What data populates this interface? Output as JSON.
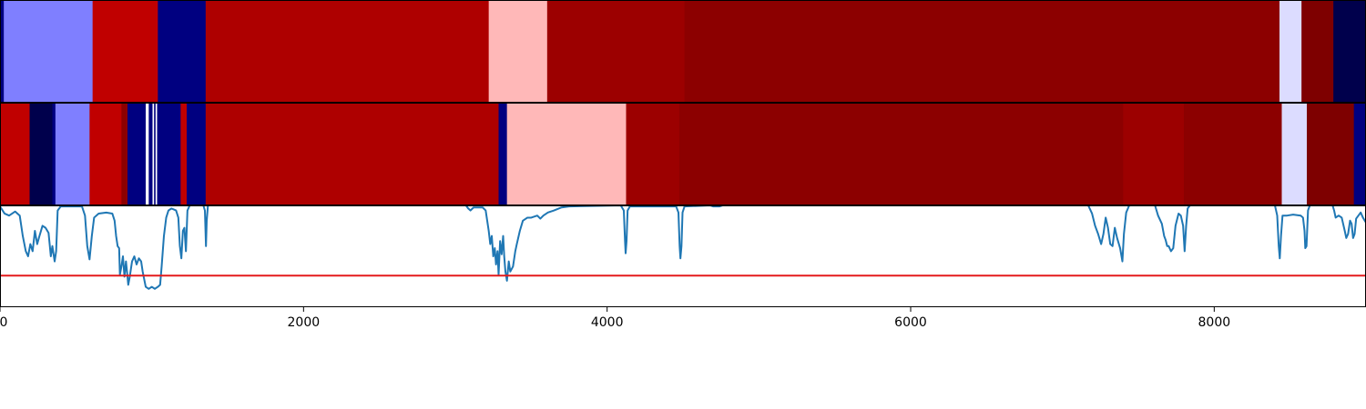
{
  "chart_data": {
    "type": "segmentation-strips-with-line",
    "xlim": [
      0,
      9000
    ],
    "x_ticks": [
      {
        "value": 0,
        "label": "0"
      },
      {
        "value": 2000,
        "label": "2000"
      },
      {
        "value": 4000,
        "label": "4000"
      },
      {
        "value": 6000,
        "label": "6000"
      },
      {
        "value": 8000,
        "label": "8000"
      }
    ],
    "strips": [
      {
        "segments": [
          {
            "start": 0,
            "end": 25,
            "color": "#000080"
          },
          {
            "start": 25,
            "end": 610,
            "color": "#7f7fff"
          },
          {
            "start": 610,
            "end": 1040,
            "color": "#c00000"
          },
          {
            "start": 1040,
            "end": 1355,
            "color": "#000080"
          },
          {
            "start": 1355,
            "end": 3220,
            "color": "#ae0000"
          },
          {
            "start": 3220,
            "end": 3605,
            "color": "#ffb8b8"
          },
          {
            "start": 3605,
            "end": 4510,
            "color": "#9c0000"
          },
          {
            "start": 4510,
            "end": 8430,
            "color": "#8c0000"
          },
          {
            "start": 8430,
            "end": 8575,
            "color": "#dcdcff"
          },
          {
            "start": 8575,
            "end": 8785,
            "color": "#7e0000"
          },
          {
            "start": 8785,
            "end": 9000,
            "color": "#00004c"
          }
        ]
      },
      {
        "segments": [
          {
            "start": 0,
            "end": 195,
            "color": "#c00000"
          },
          {
            "start": 195,
            "end": 345,
            "color": "#00004c"
          },
          {
            "start": 345,
            "end": 365,
            "color": "#000080"
          },
          {
            "start": 365,
            "end": 590,
            "color": "#7f7fff"
          },
          {
            "start": 590,
            "end": 800,
            "color": "#c00000"
          },
          {
            "start": 800,
            "end": 840,
            "color": "#8c0000"
          },
          {
            "start": 840,
            "end": 960,
            "color": "#000080"
          },
          {
            "start": 960,
            "end": 980,
            "color": "#ffffff"
          },
          {
            "start": 980,
            "end": 1005,
            "color": "#000080"
          },
          {
            "start": 1005,
            "end": 1015,
            "color": "#ffffff"
          },
          {
            "start": 1015,
            "end": 1025,
            "color": "#000080"
          },
          {
            "start": 1025,
            "end": 1035,
            "color": "#ffffff"
          },
          {
            "start": 1035,
            "end": 1190,
            "color": "#000080"
          },
          {
            "start": 1190,
            "end": 1230,
            "color": "#c00000"
          },
          {
            "start": 1230,
            "end": 1355,
            "color": "#000080"
          },
          {
            "start": 1355,
            "end": 3285,
            "color": "#ae0000"
          },
          {
            "start": 3285,
            "end": 3340,
            "color": "#000080"
          },
          {
            "start": 3340,
            "end": 4125,
            "color": "#ffb8b8"
          },
          {
            "start": 4125,
            "end": 4475,
            "color": "#9c0000"
          },
          {
            "start": 4475,
            "end": 7400,
            "color": "#8c0000"
          },
          {
            "start": 7400,
            "end": 7800,
            "color": "#9c0000"
          },
          {
            "start": 7800,
            "end": 8445,
            "color": "#8c0000"
          },
          {
            "start": 8445,
            "end": 8610,
            "color": "#dcdcff"
          },
          {
            "start": 8610,
            "end": 8920,
            "color": "#7e0000"
          },
          {
            "start": 8920,
            "end": 9000,
            "color": "#000080"
          }
        ]
      }
    ],
    "line": {
      "color": "#1f77b4",
      "ylim": [
        0,
        1
      ],
      "points": [
        [
          0,
          0.99
        ],
        [
          30,
          0.92
        ],
        [
          60,
          0.9
        ],
        [
          100,
          0.94
        ],
        [
          130,
          0.9
        ],
        [
          150,
          0.7
        ],
        [
          170,
          0.55
        ],
        [
          185,
          0.5
        ],
        [
          200,
          0.62
        ],
        [
          215,
          0.55
        ],
        [
          230,
          0.75
        ],
        [
          245,
          0.62
        ],
        [
          260,
          0.7
        ],
        [
          280,
          0.8
        ],
        [
          300,
          0.78
        ],
        [
          320,
          0.73
        ],
        [
          335,
          0.5
        ],
        [
          345,
          0.6
        ],
        [
          360,
          0.45
        ],
        [
          370,
          0.55
        ],
        [
          380,
          0.95
        ],
        [
          400,
          0.99
        ],
        [
          540,
          0.99
        ],
        [
          560,
          0.9
        ],
        [
          575,
          0.6
        ],
        [
          590,
          0.47
        ],
        [
          605,
          0.7
        ],
        [
          620,
          0.88
        ],
        [
          650,
          0.92
        ],
        [
          700,
          0.93
        ],
        [
          740,
          0.92
        ],
        [
          755,
          0.85
        ],
        [
          765,
          0.7
        ],
        [
          775,
          0.6
        ],
        [
          785,
          0.58
        ],
        [
          790,
          0.32
        ],
        [
          800,
          0.4
        ],
        [
          810,
          0.5
        ],
        [
          820,
          0.3
        ],
        [
          830,
          0.45
        ],
        [
          840,
          0.3
        ],
        [
          845,
          0.22
        ],
        [
          855,
          0.3
        ],
        [
          870,
          0.45
        ],
        [
          885,
          0.5
        ],
        [
          900,
          0.42
        ],
        [
          915,
          0.48
        ],
        [
          930,
          0.45
        ],
        [
          940,
          0.35
        ],
        [
          960,
          0.2
        ],
        [
          980,
          0.18
        ],
        [
          1000,
          0.2
        ],
        [
          1020,
          0.18
        ],
        [
          1040,
          0.2
        ],
        [
          1055,
          0.22
        ],
        [
          1065,
          0.4
        ],
        [
          1080,
          0.7
        ],
        [
          1095,
          0.88
        ],
        [
          1110,
          0.95
        ],
        [
          1130,
          0.97
        ],
        [
          1160,
          0.95
        ],
        [
          1175,
          0.88
        ],
        [
          1185,
          0.6
        ],
        [
          1195,
          0.48
        ],
        [
          1205,
          0.75
        ],
        [
          1215,
          0.78
        ],
        [
          1225,
          0.55
        ],
        [
          1235,
          0.95
        ],
        [
          1250,
          1.0
        ],
        [
          1340,
          1.0
        ],
        [
          1350,
          0.95
        ],
        [
          1357,
          0.6
        ],
        [
          1362,
          0.85
        ],
        [
          1370,
          1.0
        ],
        [
          3070,
          1.0
        ],
        [
          3085,
          0.97
        ],
        [
          3100,
          0.95
        ],
        [
          3120,
          0.98
        ],
        [
          3180,
          0.98
        ],
        [
          3200,
          0.95
        ],
        [
          3210,
          0.85
        ],
        [
          3220,
          0.75
        ],
        [
          3230,
          0.62
        ],
        [
          3240,
          0.7
        ],
        [
          3250,
          0.5
        ],
        [
          3260,
          0.58
        ],
        [
          3268,
          0.42
        ],
        [
          3278,
          0.55
        ],
        [
          3285,
          0.32
        ],
        [
          3295,
          0.65
        ],
        [
          3305,
          0.52
        ],
        [
          3315,
          0.7
        ],
        [
          3322,
          0.5
        ],
        [
          3330,
          0.35
        ],
        [
          3340,
          0.26
        ],
        [
          3352,
          0.45
        ],
        [
          3362,
          0.35
        ],
        [
          3380,
          0.4
        ],
        [
          3395,
          0.55
        ],
        [
          3405,
          0.62
        ],
        [
          3425,
          0.75
        ],
        [
          3445,
          0.85
        ],
        [
          3475,
          0.88
        ],
        [
          3500,
          0.88
        ],
        [
          3540,
          0.9
        ],
        [
          3560,
          0.87
        ],
        [
          3580,
          0.9
        ],
        [
          3610,
          0.93
        ],
        [
          3650,
          0.95
        ],
        [
          3700,
          0.98
        ],
        [
          3750,
          0.99
        ],
        [
          4090,
          1.0
        ],
        [
          4110,
          0.95
        ],
        [
          4118,
          0.65
        ],
        [
          4122,
          0.53
        ],
        [
          4128,
          0.65
        ],
        [
          4135,
          0.95
        ],
        [
          4150,
          0.99
        ],
        [
          4455,
          0.99
        ],
        [
          4470,
          0.93
        ],
        [
          4478,
          0.6
        ],
        [
          4483,
          0.48
        ],
        [
          4490,
          0.6
        ],
        [
          4497,
          0.93
        ],
        [
          4510,
          0.99
        ],
        [
          4680,
          1.0
        ],
        [
          4700,
          0.99
        ],
        [
          4740,
          0.99
        ],
        [
          4760,
          1.0
        ],
        [
          7170,
          1.0
        ],
        [
          7195,
          0.92
        ],
        [
          7215,
          0.8
        ],
        [
          7235,
          0.72
        ],
        [
          7255,
          0.62
        ],
        [
          7270,
          0.72
        ],
        [
          7285,
          0.88
        ],
        [
          7300,
          0.78
        ],
        [
          7315,
          0.62
        ],
        [
          7330,
          0.6
        ],
        [
          7345,
          0.78
        ],
        [
          7360,
          0.68
        ],
        [
          7380,
          0.58
        ],
        [
          7395,
          0.45
        ],
        [
          7405,
          0.72
        ],
        [
          7420,
          0.93
        ],
        [
          7440,
          1.0
        ],
        [
          7610,
          1.0
        ],
        [
          7630,
          0.9
        ],
        [
          7655,
          0.82
        ],
        [
          7670,
          0.7
        ],
        [
          7680,
          0.66
        ],
        [
          7690,
          0.6
        ],
        [
          7700,
          0.6
        ],
        [
          7715,
          0.55
        ],
        [
          7730,
          0.58
        ],
        [
          7745,
          0.8
        ],
        [
          7765,
          0.92
        ],
        [
          7780,
          0.9
        ],
        [
          7795,
          0.8
        ],
        [
          7805,
          0.55
        ],
        [
          7815,
          0.8
        ],
        [
          7825,
          0.97
        ],
        [
          7840,
          1.0
        ],
        [
          8400,
          1.0
        ],
        [
          8415,
          0.9
        ],
        [
          8425,
          0.6
        ],
        [
          8432,
          0.48
        ],
        [
          8440,
          0.7
        ],
        [
          8450,
          0.9
        ],
        [
          8480,
          0.9
        ],
        [
          8520,
          0.91
        ],
        [
          8570,
          0.9
        ],
        [
          8585,
          0.88
        ],
        [
          8595,
          0.75
        ],
        [
          8600,
          0.58
        ],
        [
          8608,
          0.6
        ],
        [
          8618,
          0.95
        ],
        [
          8630,
          1.0
        ],
        [
          8780,
          1.0
        ],
        [
          8790,
          0.95
        ],
        [
          8800,
          0.88
        ],
        [
          8820,
          0.9
        ],
        [
          8840,
          0.88
        ],
        [
          8860,
          0.75
        ],
        [
          8870,
          0.68
        ],
        [
          8882,
          0.72
        ],
        [
          8895,
          0.85
        ],
        [
          8905,
          0.82
        ],
        [
          8915,
          0.68
        ],
        [
          8925,
          0.72
        ],
        [
          8935,
          0.87
        ],
        [
          8950,
          0.9
        ],
        [
          8965,
          0.93
        ],
        [
          8980,
          0.88
        ],
        [
          9000,
          0.83
        ]
      ]
    },
    "threshold": {
      "value": 0.31,
      "color": "#e41a1c"
    },
    "grid": false,
    "legend": "none"
  }
}
